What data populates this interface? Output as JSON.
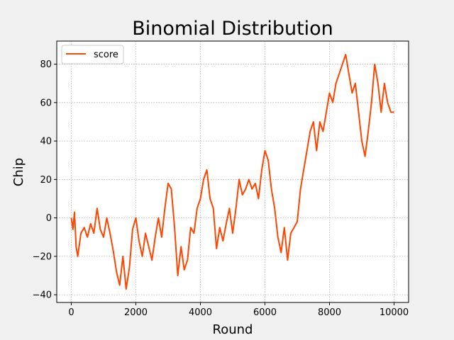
{
  "chart_data": {
    "type": "line",
    "title": "Binomial Distribution",
    "xlabel": "Round",
    "ylabel": "Chip",
    "xlim": [
      -450,
      10450
    ],
    "ylim": [
      -44,
      92
    ],
    "xticks": [
      0,
      2000,
      4000,
      6000,
      8000,
      10000
    ],
    "yticks": [
      -40,
      -20,
      0,
      20,
      40,
      60,
      80
    ],
    "grid": true,
    "legend_position": "upper-left",
    "series": [
      {
        "name": "score",
        "color": "#ff4500",
        "x": [
          0,
          50,
          100,
          150,
          200,
          300,
          400,
          500,
          600,
          700,
          800,
          900,
          1000,
          1100,
          1200,
          1300,
          1400,
          1500,
          1600,
          1700,
          1800,
          1900,
          2000,
          2100,
          2200,
          2300,
          2400,
          2500,
          2600,
          2700,
          2800,
          2900,
          3000,
          3100,
          3200,
          3300,
          3400,
          3500,
          3600,
          3700,
          3800,
          3900,
          4000,
          4100,
          4200,
          4300,
          4400,
          4500,
          4600,
          4700,
          4800,
          4900,
          5000,
          5100,
          5200,
          5300,
          5400,
          5500,
          5600,
          5700,
          5800,
          5900,
          6000,
          6100,
          6200,
          6300,
          6400,
          6500,
          6600,
          6700,
          6800,
          6900,
          7000,
          7100,
          7200,
          7300,
          7400,
          7500,
          7600,
          7700,
          7800,
          7900,
          8000,
          8100,
          8200,
          8300,
          8400,
          8500,
          8600,
          8700,
          8800,
          8900,
          9000,
          9100,
          9200,
          9300,
          9400,
          9500,
          9600,
          9700,
          9800,
          9900,
          10000
        ],
        "y": [
          0,
          -6,
          3,
          -15,
          -20,
          -8,
          -5,
          -10,
          -3,
          -8,
          5,
          -6,
          -10,
          0,
          -8,
          -17,
          -28,
          -35,
          -20,
          -37,
          -26,
          -6,
          0,
          -12,
          -20,
          -8,
          -15,
          -22,
          -10,
          0,
          -10,
          5,
          18,
          15,
          -5,
          -30,
          -15,
          -27,
          -22,
          -5,
          -8,
          5,
          10,
          20,
          25,
          10,
          5,
          -16,
          -5,
          -12,
          -3,
          5,
          -8,
          5,
          20,
          12,
          15,
          20,
          15,
          18,
          10,
          25,
          35,
          30,
          15,
          5,
          -10,
          -18,
          -5,
          -22,
          -8,
          -5,
          -2,
          15,
          25,
          35,
          45,
          50,
          35,
          50,
          45,
          55,
          65,
          60,
          70,
          75,
          80,
          85,
          75,
          65,
          70,
          55,
          40,
          32,
          45,
          60,
          80,
          70,
          55,
          70,
          60,
          55,
          55
        ]
      }
    ]
  }
}
